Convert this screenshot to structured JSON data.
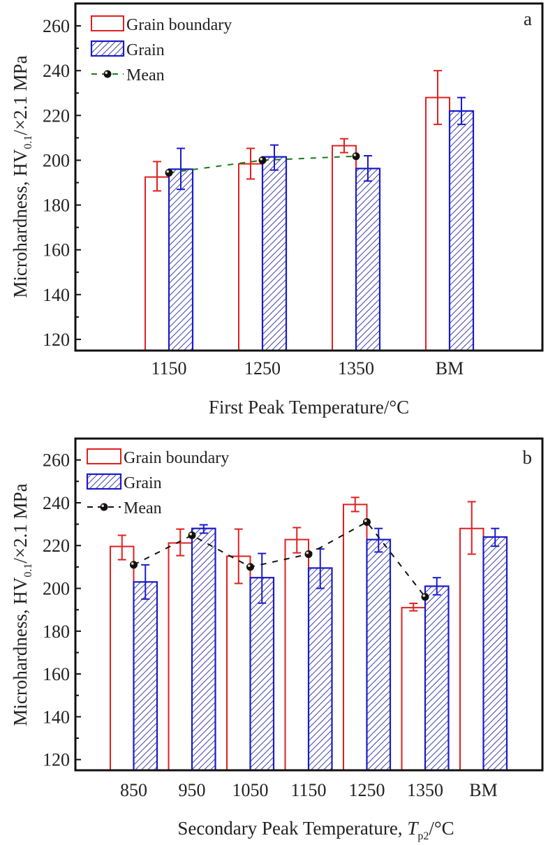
{
  "chart_data": [
    {
      "type": "bar",
      "panel_label": "a",
      "xlabel": "First Peak Temperature/°C",
      "ylabel": {
        "main": "Microhardness, HV",
        "subscript": "0.1",
        "suffix": "/×2.1 MPa"
      },
      "categories": [
        "1150",
        "1250",
        "1350",
        "BM"
      ],
      "ylim": [
        115,
        270
      ],
      "yticks": [
        120,
        140,
        160,
        180,
        200,
        220,
        240,
        260
      ],
      "legend_position": "top-left",
      "series": [
        {
          "name": "Grain boundary",
          "kind": "bar",
          "color": "#e02020",
          "fill": "none",
          "values": [
            192.5,
            198.4,
            206.5,
            228
          ],
          "err_low": [
            186.3,
            191.6,
            203.4,
            216
          ],
          "err_high": [
            199.4,
            205.3,
            209.6,
            240
          ]
        },
        {
          "name": "Grain",
          "kind": "bar",
          "color": "#1a1acc",
          "fill": "hatch",
          "values": [
            196,
            201.5,
            196.3,
            222
          ],
          "err_low": [
            187,
            195.6,
            190.7,
            216
          ],
          "err_high": [
            205.3,
            206.8,
            202,
            228
          ]
        },
        {
          "name": "Mean",
          "kind": "line",
          "color": "#1a7a1a",
          "style": "dashed",
          "values": [
            194.4,
            200,
            201.8,
            null
          ]
        }
      ]
    },
    {
      "type": "bar",
      "panel_label": "b",
      "xlabel": {
        "main": "Secondary Peak Temperature, ",
        "italic": "T",
        "subscript": "p2",
        "suffix": "/°C"
      },
      "ylabel": {
        "main": "Microhardness, HV",
        "subscript": "0.1",
        "suffix": "/×2.1 MPa"
      },
      "categories": [
        "850",
        "950",
        "1050",
        "1150",
        "1250",
        "1350",
        "BM"
      ],
      "ylim": [
        115,
        270
      ],
      "yticks": [
        120,
        140,
        160,
        180,
        200,
        220,
        240,
        260
      ],
      "legend_position": "top-left",
      "series": [
        {
          "name": "Grain boundary",
          "kind": "bar",
          "color": "#e02020",
          "fill": "none",
          "values": [
            219.6,
            221.2,
            215,
            222.8,
            239.2,
            191,
            228
          ],
          "err_low": [
            213.4,
            215.3,
            202.3,
            216.6,
            235.9,
            189.5,
            216
          ],
          "err_high": [
            224.8,
            227.7,
            227.7,
            228.4,
            242.5,
            193,
            240.5
          ]
        },
        {
          "name": "Grain",
          "kind": "bar",
          "color": "#1a1acc",
          "fill": "hatch",
          "values": [
            203,
            228,
            205,
            209.5,
            222.8,
            201,
            224
          ],
          "err_low": [
            195,
            225.8,
            193.1,
            200,
            217,
            197,
            219.7
          ],
          "err_high": [
            211,
            229.7,
            216.3,
            218.4,
            228,
            205,
            228
          ]
        },
        {
          "name": "Mean",
          "kind": "line",
          "color": "#111111",
          "style": "dashed",
          "values": [
            211,
            224.8,
            210,
            216,
            231,
            196,
            null
          ]
        }
      ]
    }
  ]
}
